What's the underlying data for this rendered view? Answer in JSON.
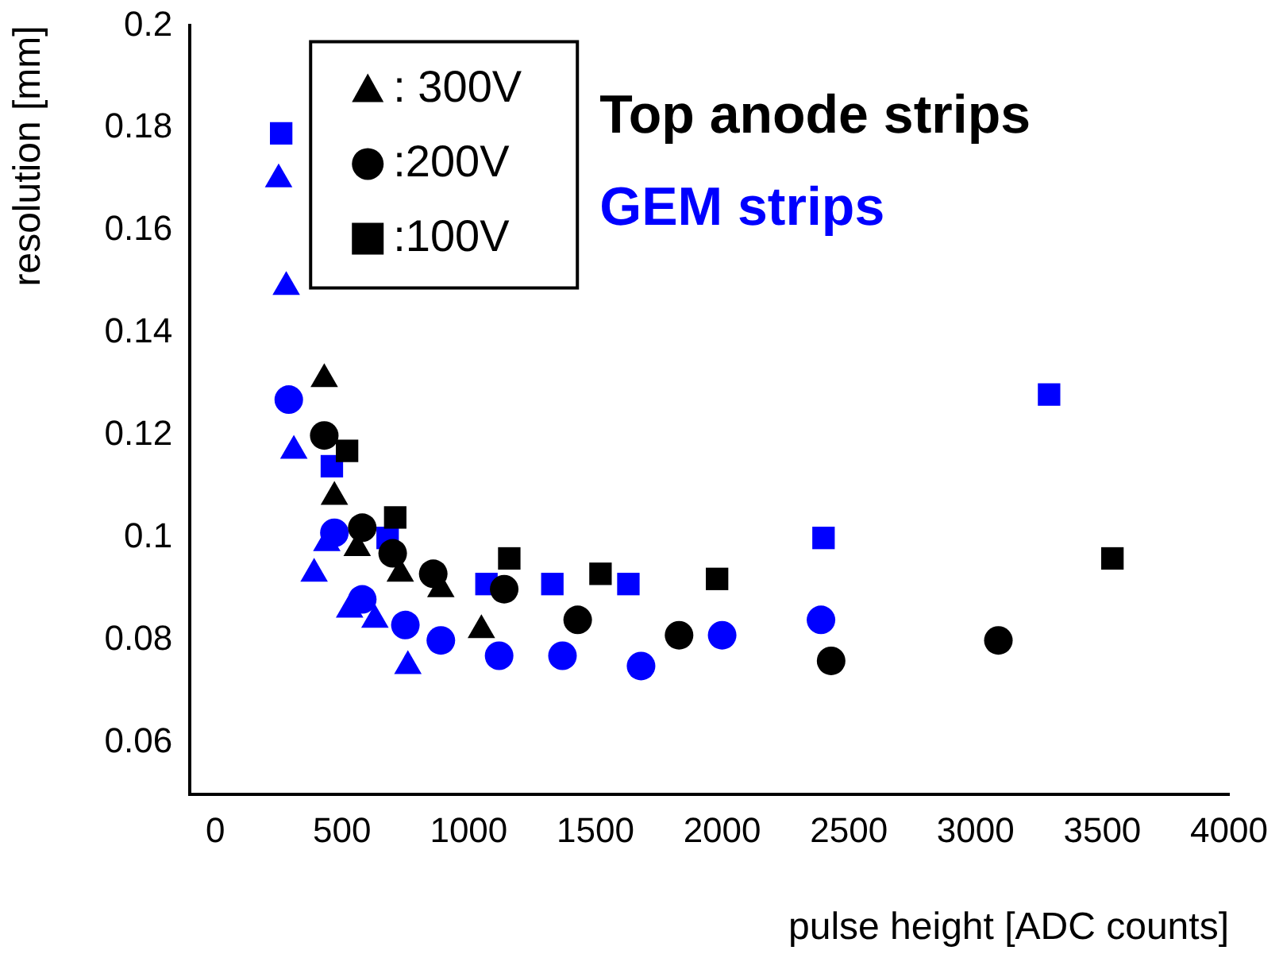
{
  "chart_data": {
    "type": "scatter",
    "xlabel": "pulse height [ADC counts]",
    "ylabel": "resolution [mm]",
    "xlim": [
      -100,
      4000
    ],
    "xticks": [
      0,
      500,
      1000,
      1500,
      2000,
      2500,
      3000,
      3500,
      4000
    ],
    "ylim": [
      0.05,
      0.2
    ],
    "yticks": [
      0.06,
      0.08,
      0.1,
      0.12,
      0.14,
      0.16,
      0.18,
      0.2
    ],
    "grid": false,
    "legend": "top left",
    "annotations": [
      "Top anode strips",
      "GEM strips"
    ],
    "series": [
      {
        "name": ": 300V",
        "color": "#000000",
        "marker": "triangle",
        "x": [
          430,
          470,
          560,
          730,
          890,
          1050
        ],
        "values": [
          0.131,
          0.108,
          0.098,
          0.093,
          0.09,
          0.082
        ]
      },
      {
        "name": ":200V",
        "color": "#000000",
        "marker": "circle",
        "x": [
          430,
          580,
          700,
          860,
          1140,
          1430,
          1830,
          2430,
          3090
        ],
        "values": [
          0.12,
          0.102,
          0.097,
          0.093,
          0.09,
          0.084,
          0.081,
          0.076,
          0.08
        ]
      },
      {
        "name": ":100V",
        "color": "#000000",
        "marker": "square",
        "x": [
          520,
          710,
          1160,
          1520,
          1980,
          3540
        ],
        "values": [
          0.117,
          0.104,
          0.096,
          0.093,
          0.092,
          0.096
        ]
      },
      {
        "color": "#0000ff",
        "marker": "triangle",
        "x": [
          250,
          280,
          310,
          390,
          440,
          530,
          630,
          760
        ],
        "values": [
          0.17,
          0.149,
          0.117,
          0.093,
          0.099,
          0.086,
          0.084,
          0.075
        ]
      },
      {
        "color": "#0000ff",
        "marker": "circle",
        "x": [
          290,
          470,
          580,
          750,
          890,
          1120,
          1370,
          1680,
          2000,
          2390
        ],
        "values": [
          0.127,
          0.101,
          0.088,
          0.083,
          0.08,
          0.077,
          0.077,
          0.075,
          0.081,
          0.084
        ]
      },
      {
        "color": "#0000ff",
        "marker": "square",
        "x": [
          260,
          460,
          680,
          1070,
          1330,
          1630,
          2400,
          3290
        ],
        "values": [
          0.179,
          0.114,
          0.1,
          0.091,
          0.091,
          0.091,
          0.1,
          0.128
        ]
      }
    ]
  }
}
